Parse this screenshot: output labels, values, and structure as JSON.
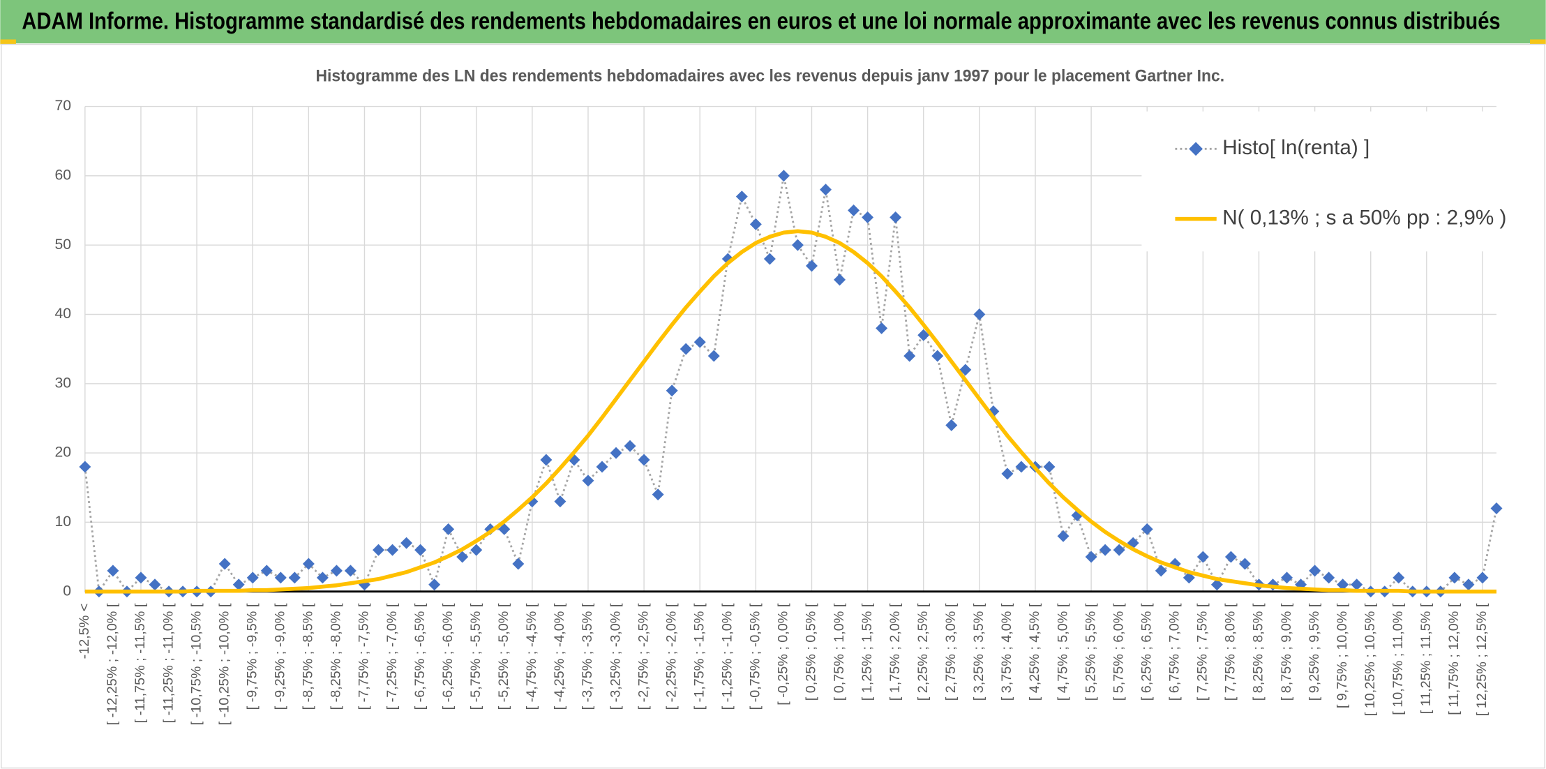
{
  "chart_data": {
    "type": "line",
    "header": "ADAM Informe. Histogramme standardisé des rendements hebdomadaires en euros et une loi normale approximante avec les revenus connus distribués",
    "title": "Histogramme des LN des rendements hebdomadaires avec les revenus depuis janv 1997 pour le placement Gartner Inc.",
    "categories": [
      "-12,5% <",
      null,
      "[ -12,25% ; -12,0% [",
      null,
      "[ -11,75% ; -11,5% [",
      null,
      "[ -11,25% ; -11,0% [",
      null,
      "[ -10,75% ; -10,5% [",
      null,
      "[ -10,25% ; -10,0% [",
      null,
      "[ -9,75% ; -9,5% [",
      null,
      "[ -9,25% ; -9,0% [",
      null,
      "[ -8,75% ; -8,5% [",
      null,
      "[ -8,25% ; -8,0% [",
      null,
      "[ -7,75% ; -7,5% [",
      null,
      "[ -7,25% ; -7,0% [",
      null,
      "[ -6,75% ; -6,5% [",
      null,
      "[ -6,25% ; -6,0% [",
      null,
      "[ -5,75% ; -5,5% [",
      null,
      "[ -5,25% ; -5,0% [",
      null,
      "[ -4,75% ; -4,5% [",
      null,
      "[ -4,25% ; -4,0% [",
      null,
      "[ -3,75% ; -3,5% [",
      null,
      "[ -3,25% ; -3,0% [",
      null,
      "[ -2,75% ; -2,5% [",
      null,
      "[ -2,25% ; -2,0% [",
      null,
      "[ -1,75% ; -1,5% [",
      null,
      "[ -1,25% ; -1,0% [",
      null,
      "[ -0,75% ; -0,5% [",
      null,
      "[ -0,25% ; 0,0% [",
      null,
      "[ 0,25% ; 0,5% [",
      null,
      "[ 0,75% ; 1,0% [",
      null,
      "[ 1,25% ; 1,5% [",
      null,
      "[ 1,75% ; 2,0% [",
      null,
      "[ 2,25% ; 2,5% [",
      null,
      "[ 2,75% ; 3,0% [",
      null,
      "[ 3,25% ; 3,5% [",
      null,
      "[ 3,75% ; 4,0% [",
      null,
      "[ 4,25% ; 4,5% [",
      null,
      "[ 4,75% ; 5,0% [",
      null,
      "[ 5,25% ; 5,5% [",
      null,
      "[ 5,75% ; 6,0% [",
      null,
      "[ 6,25% ; 6,5% [",
      null,
      "[ 6,75% ; 7,0% [",
      null,
      "[ 7,25% ; 7,5% [",
      null,
      "[ 7,75% ; 8,0% [",
      null,
      "[ 8,25% ; 8,5% [",
      null,
      "[ 8,75% ; 9,0% [",
      null,
      "[ 9,25% ; 9,5% [",
      null,
      "[ 9,75% ; 10,0% [",
      null,
      "[ 10,25% ; 10,5% [",
      null,
      "[ 10,75% ; 11,0% [",
      null,
      "[ 11,25% ; 11,5% [",
      null,
      "[ 11,75% ; 12,0% [",
      null,
      "[ 12,25% ; 12,5% [",
      null
    ],
    "series": [
      {
        "name": "Histo[ ln(renta) ]",
        "color": "#4472c4",
        "line_color": "#a5a5a5",
        "line_style": "dotted",
        "marker": "diamond",
        "values": [
          18,
          0,
          3,
          0,
          2,
          1,
          0,
          0,
          0,
          0,
          4,
          1,
          2,
          3,
          2,
          2,
          4,
          2,
          3,
          3,
          1,
          6,
          6,
          7,
          6,
          1,
          9,
          5,
          6,
          9,
          9,
          4,
          13,
          19,
          13,
          19,
          16,
          18,
          20,
          21,
          19,
          14,
          29,
          35,
          36,
          34,
          48,
          57,
          53,
          48,
          60,
          50,
          47,
          58,
          45,
          55,
          54,
          38,
          54,
          34,
          37,
          34,
          24,
          32,
          40,
          26,
          17,
          18,
          18,
          18,
          8,
          11,
          5,
          6,
          6,
          7,
          9,
          3,
          4,
          2,
          5,
          1,
          5,
          4,
          1,
          1,
          2,
          1,
          3,
          2,
          1,
          1,
          0,
          0,
          2,
          0,
          0,
          0,
          2,
          1,
          2,
          12
        ]
      },
      {
        "name": "N( 0,13% ; s a 50% pp : 2,9% )",
        "color": "#ffc000",
        "line_style": "solid",
        "marker": "none",
        "values": [
          0,
          0,
          0,
          0,
          0,
          0,
          0,
          0,
          0.1,
          0.1,
          0.1,
          0.1,
          0.2,
          0.2,
          0.3,
          0.4,
          0.5,
          0.7,
          0.9,
          1.2,
          1.5,
          1.8,
          2.3,
          2.8,
          3.5,
          4.2,
          5.1,
          6.1,
          7.3,
          8.6,
          10.1,
          11.8,
          13.6,
          15.6,
          17.8,
          20.1,
          22.5,
          25.1,
          27.8,
          30.5,
          33.2,
          35.9,
          38.5,
          41.0,
          43.3,
          45.5,
          47.4,
          49.0,
          50.3,
          51.2,
          51.8,
          52,
          51.8,
          51.2,
          50.3,
          49.0,
          47.4,
          45.5,
          43.3,
          41.0,
          38.5,
          35.9,
          33.2,
          30.5,
          27.8,
          25.1,
          22.5,
          20.1,
          17.8,
          15.6,
          13.6,
          11.8,
          10.1,
          8.6,
          7.3,
          6.1,
          5.1,
          4.2,
          3.5,
          2.8,
          2.3,
          1.8,
          1.5,
          1.2,
          0.9,
          0.7,
          0.5,
          0.4,
          0.3,
          0.2,
          0.2,
          0.1,
          0.1,
          0.1,
          0.1,
          0,
          0,
          0,
          0,
          0,
          0,
          0
        ]
      }
    ],
    "ylim": [
      0,
      70
    ],
    "yticks": [
      0,
      10,
      20,
      30,
      40,
      50,
      60,
      70
    ],
    "grid": true,
    "legend": "top-right"
  }
}
